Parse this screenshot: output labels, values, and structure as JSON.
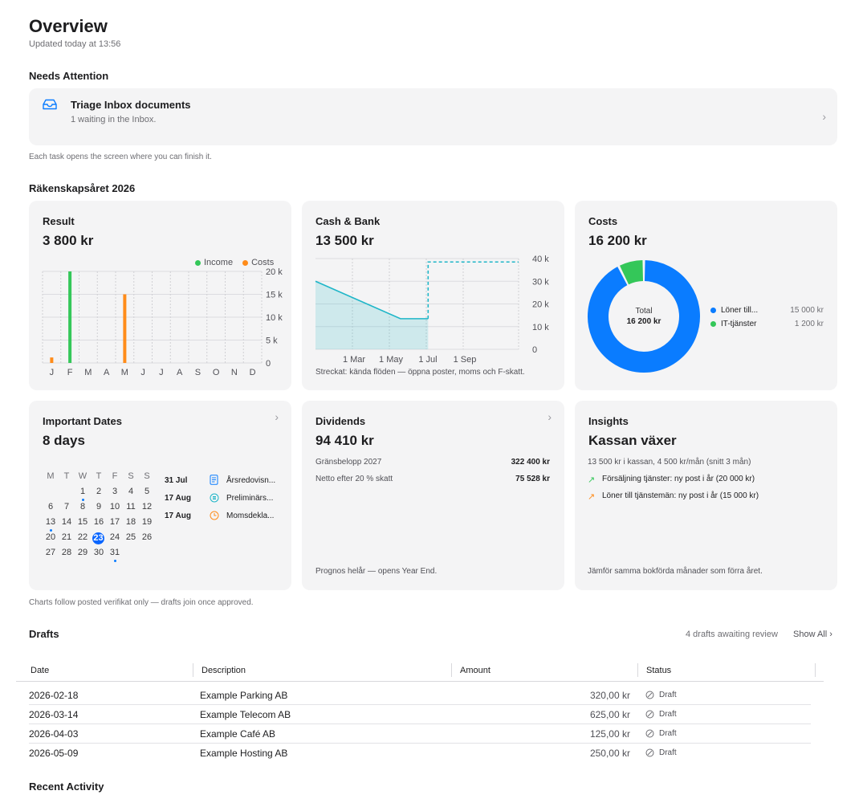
{
  "header": {
    "title": "Overview",
    "updated": "Updated today at 13:56"
  },
  "attention": {
    "section_title": "Needs Attention",
    "task_title": "Triage Inbox documents",
    "task_detail": "1 waiting in the Inbox.",
    "footnote": "Each task opens the screen where you can finish it."
  },
  "fiscal": {
    "section_title": "Räkenskapsåret 2026",
    "footnote": "Charts follow posted verifikat only — drafts join once approved."
  },
  "result_card": {
    "title": "Result",
    "value": "3 800 kr",
    "legend_income": "Income",
    "legend_costs": "Costs"
  },
  "cash_card": {
    "title": "Cash & Bank",
    "value": "13 500 kr",
    "footnote": "Streckat: kända flöden — öppna poster, moms och F-skatt."
  },
  "costs_card": {
    "title": "Costs",
    "value": "16 200 kr",
    "center_label": "Total",
    "center_value": "16 200 kr",
    "items": [
      {
        "label": "Löner till...",
        "amount": "15 000 kr"
      },
      {
        "label": "IT-tjänster",
        "amount": "1 200 kr"
      }
    ]
  },
  "dates_card": {
    "title": "Important Dates",
    "value": "8 days",
    "weekdays": [
      "M",
      "T",
      "W",
      "T",
      "F",
      "S",
      "S"
    ],
    "events": [
      {
        "date": "31 Jul",
        "name": "Årsredovisn..."
      },
      {
        "date": "17 Aug",
        "name": "Preliminärs..."
      },
      {
        "date": "17 Aug",
        "name": "Momsdekla..."
      }
    ]
  },
  "dividends_card": {
    "title": "Dividends",
    "value": "94 410 kr",
    "rows": [
      {
        "label": "Gränsbelopp 2027",
        "value": "322 400 kr"
      },
      {
        "label": "Netto efter 20 % skatt",
        "value": "75 528 kr"
      }
    ],
    "footnote": "Prognos helår — opens Year End."
  },
  "insights_card": {
    "title": "Insights",
    "value": "Kassan växer",
    "summary": "13 500 kr i kassan, 4 500 kr/mån (snitt 3 mån)",
    "lines": [
      "Försäljning tjänster: ny post i år (20 000 kr)",
      "Löner till tjänstemän: ny post i år (15 000 kr)"
    ],
    "footnote": "Jämför samma bokförda månader som förra året."
  },
  "drafts": {
    "section_title": "Drafts",
    "awaiting": "4 drafts awaiting review",
    "show_all": "Show All",
    "columns": [
      "Date",
      "Description",
      "Amount",
      "Status"
    ],
    "rows": [
      {
        "date": "2026-02-18",
        "description": "Example Parking AB",
        "amount": "320,00 kr",
        "status": "Draft"
      },
      {
        "date": "2026-03-14",
        "description": "Example Telecom AB",
        "amount": "625,00 kr",
        "status": "Draft"
      },
      {
        "date": "2026-04-03",
        "description": "Example Café AB",
        "amount": "125,00 kr",
        "status": "Draft"
      },
      {
        "date": "2026-05-09",
        "description": "Example Hosting AB",
        "amount": "250,00 kr",
        "status": "Draft"
      }
    ]
  },
  "recent": {
    "section_title": "Recent Activity"
  },
  "colors": {
    "income": "#34c759",
    "costs": "#ff8c1a",
    "cash_line": "#1fb6c8",
    "donut_primary": "#0a7cff",
    "donut_secondary": "#34c759",
    "accent": "#0a66ff"
  },
  "chart_data": [
    {
      "type": "bar",
      "categories": [
        "J",
        "F",
        "M",
        "A",
        "M",
        "J",
        "J",
        "A",
        "S",
        "O",
        "N",
        "D"
      ],
      "series": [
        {
          "name": "Income",
          "values": [
            0,
            20000,
            0,
            0,
            0,
            0,
            0,
            0,
            0,
            0,
            0,
            0
          ]
        },
        {
          "name": "Costs",
          "values": [
            1200,
            0,
            0,
            0,
            15000,
            0,
            0,
            0,
            0,
            0,
            0,
            0
          ]
        }
      ],
      "ylim": [
        0,
        20000
      ],
      "yticks": [
        "0",
        "5 k",
        "10 k",
        "15 k",
        "20 k"
      ],
      "legend": "top-right",
      "grid": true
    },
    {
      "type": "line",
      "x": [
        "Jan",
        "Jun",
        "Jul",
        "Jul",
        "Dec"
      ],
      "series": [
        {
          "values": [
            30000,
            13500,
            13500,
            null,
            null
          ]
        },
        {
          "values": [
            null,
            null,
            13500,
            38500,
            38500
          ],
          "style": "dashed"
        }
      ],
      "xticks": [
        "1 Mar",
        "1 May",
        "1 Jul",
        "1 Sep"
      ],
      "yticks": [
        "0",
        "10 k",
        "20 k",
        "30 k",
        "40 k"
      ],
      "ylim": [
        0,
        40000
      ],
      "grid": true
    },
    {
      "type": "pie",
      "categories": [
        "Löner till...",
        "IT-tjänster"
      ],
      "values": [
        15000,
        1200
      ]
    }
  ]
}
